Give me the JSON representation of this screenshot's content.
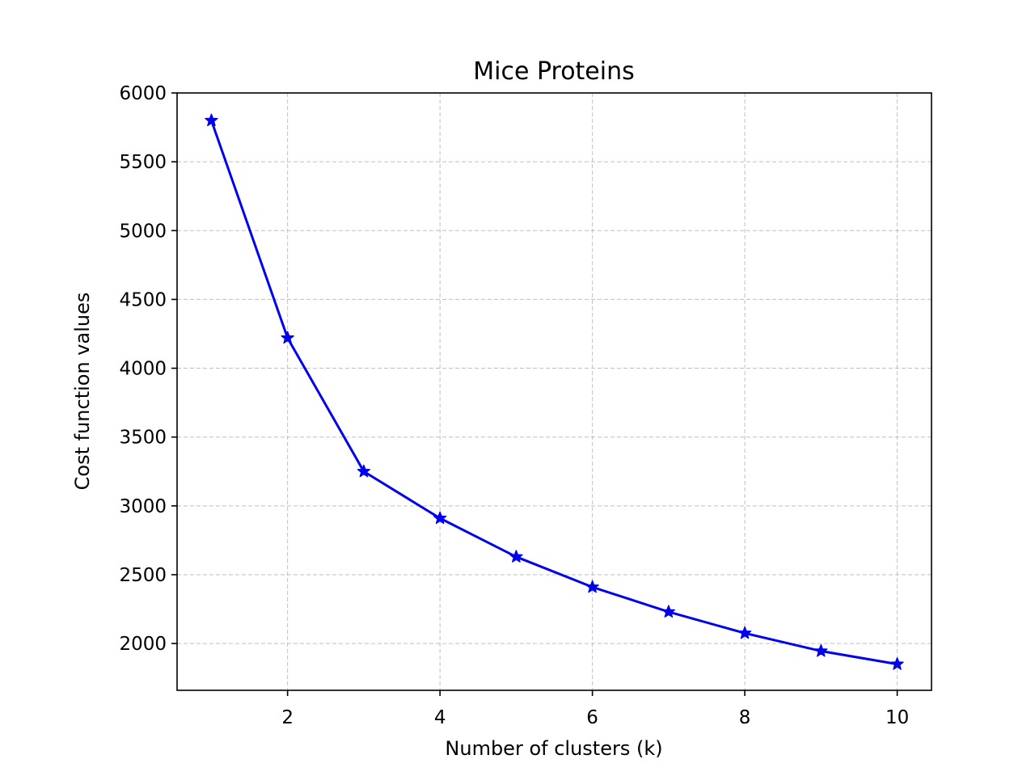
{
  "chart_data": {
    "type": "line",
    "title": "Mice Proteins",
    "xlabel": "Number of clusters (k)",
    "ylabel": "Cost function values",
    "xlim": [
      0.55,
      10.45
    ],
    "ylim": [
      1660,
      6000
    ],
    "xticks": [
      2,
      4,
      6,
      8,
      10
    ],
    "yticks": [
      2000,
      2500,
      3000,
      3500,
      4000,
      4500,
      5000,
      5500,
      6000
    ],
    "grid": true,
    "marker": "star",
    "color": "#0000ee",
    "series": [
      {
        "x": [
          1,
          2,
          3,
          4,
          5,
          6,
          7,
          8,
          9,
          10
        ],
        "y": [
          5800,
          4220,
          3250,
          2910,
          2630,
          2410,
          2230,
          2075,
          1945,
          1850
        ]
      }
    ]
  }
}
